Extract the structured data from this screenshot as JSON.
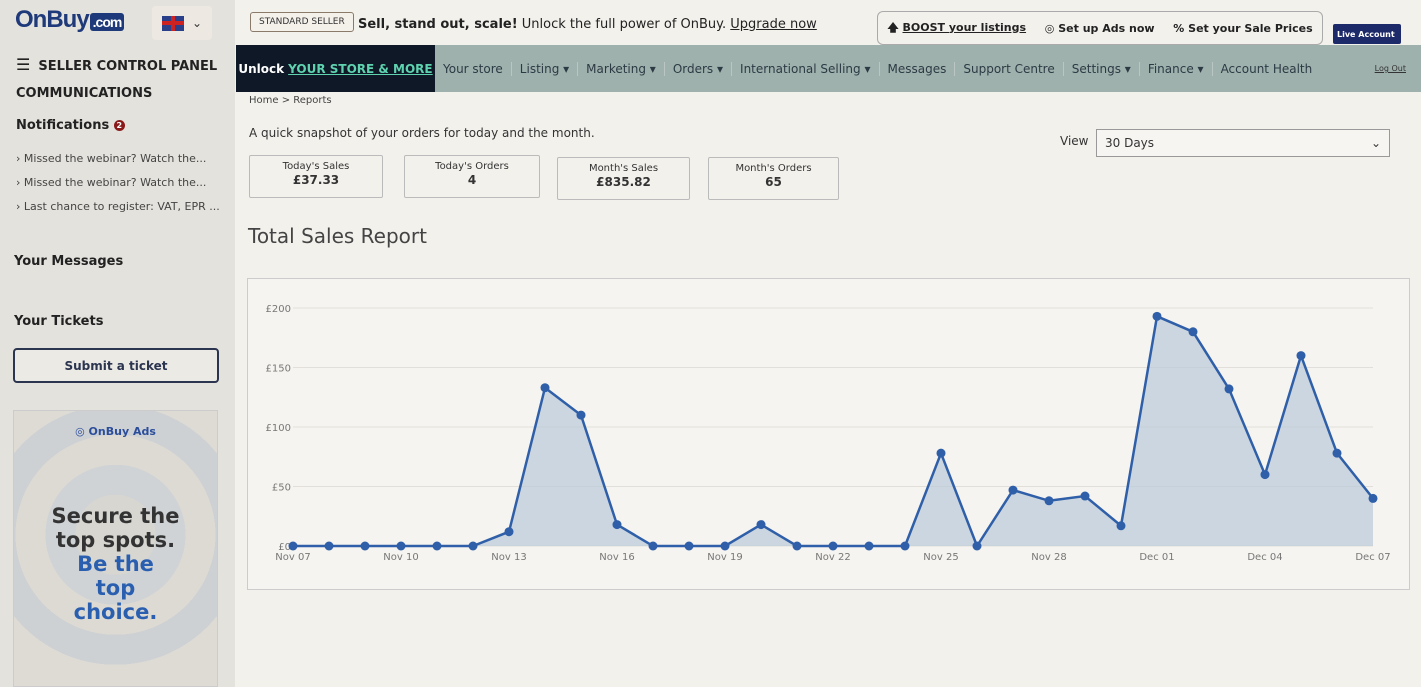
{
  "brand": {
    "logo_main": "OnBuy",
    "logo_suffix": ".com"
  },
  "sidebar": {
    "panel_title": "SELLER CONTROL PANEL",
    "communications": "COMMUNICATIONS",
    "notifications_label": "Notifications",
    "notifications_count": "2",
    "notifications": [
      "Missed the webinar? Watch the...",
      "Missed the webinar? Watch the...",
      "Last chance to register: VAT, EPR ..."
    ],
    "messages_label": "Your Messages",
    "tickets_label": "Your Tickets",
    "submit_ticket": "Submit a ticket",
    "ad": {
      "brand": "OnBuy Ads",
      "line1": "Secure the top spots.",
      "line2": "Be the top choice."
    }
  },
  "topbar": {
    "seller_badge": "STANDARD SELLER",
    "promo_bold": "Sell, stand out, scale!",
    "promo_text": "Unlock the full power of OnBuy.",
    "promo_link": "Upgrade now",
    "boost": "BOOST your listings",
    "ads": "Set up Ads now",
    "sale": "Set your Sale Prices",
    "live_account": "Live Account"
  },
  "nav": {
    "unlock_prefix": "Unlock",
    "unlock_link": "YOUR STORE & MORE",
    "items": [
      "Your store",
      "Listing ▾",
      "Marketing ▾",
      "Orders ▾",
      "International Selling ▾",
      "Messages",
      "Support Centre",
      "Settings ▾",
      "Finance ▾",
      "Account Health"
    ],
    "logout": "Log Out"
  },
  "main": {
    "breadcrumb": "Home > Reports",
    "snapshot": "A quick snapshot of your orders for today and the month.",
    "view_label": "View",
    "view_value": "30 Days",
    "stats": [
      {
        "label": "Today's Sales",
        "value": "£37.33"
      },
      {
        "label": "Today's Orders",
        "value": "4"
      },
      {
        "label": "Month's Sales",
        "value": "£835.82"
      },
      {
        "label": "Month's Orders",
        "value": "65"
      }
    ],
    "report_title": "Total Sales Report"
  },
  "colors": {
    "line": "#2f5fa8",
    "fill": "#b9c9d8",
    "nav_dark": "#0e1826",
    "brand": "#1f3a7a"
  },
  "chart_data": {
    "type": "area",
    "title": "Total Sales Report",
    "x": [
      "Nov 07",
      "Nov 08",
      "Nov 09",
      "Nov 10",
      "Nov 11",
      "Nov 12",
      "Nov 13",
      "Nov 14",
      "Nov 15",
      "Nov 16",
      "Nov 17",
      "Nov 18",
      "Nov 19",
      "Nov 20",
      "Nov 21",
      "Nov 22",
      "Nov 23",
      "Nov 24",
      "Nov 25",
      "Nov 26",
      "Nov 27",
      "Nov 28",
      "Nov 29",
      "Nov 30",
      "Dec 01",
      "Dec 02",
      "Dec 03",
      "Dec 04",
      "Dec 05",
      "Dec 06",
      "Dec 07"
    ],
    "values": [
      0,
      0,
      0,
      0,
      0,
      0,
      12,
      133,
      110,
      18,
      0,
      0,
      0,
      18,
      0,
      0,
      0,
      0,
      78,
      0,
      47,
      38,
      42,
      17,
      193,
      180,
      132,
      60,
      160,
      78,
      40
    ],
    "x_tick_labels": [
      "Nov 07",
      "Nov 10",
      "Nov 13",
      "Nov 16",
      "Nov 19",
      "Nov 22",
      "Nov 25",
      "Nov 28",
      "Dec 01",
      "Dec 04",
      "Dec 07"
    ],
    "y_tick_labels": [
      "£0",
      "£50",
      "£100",
      "£150",
      "£200"
    ],
    "ylim": [
      0,
      200
    ],
    "grid": true
  }
}
